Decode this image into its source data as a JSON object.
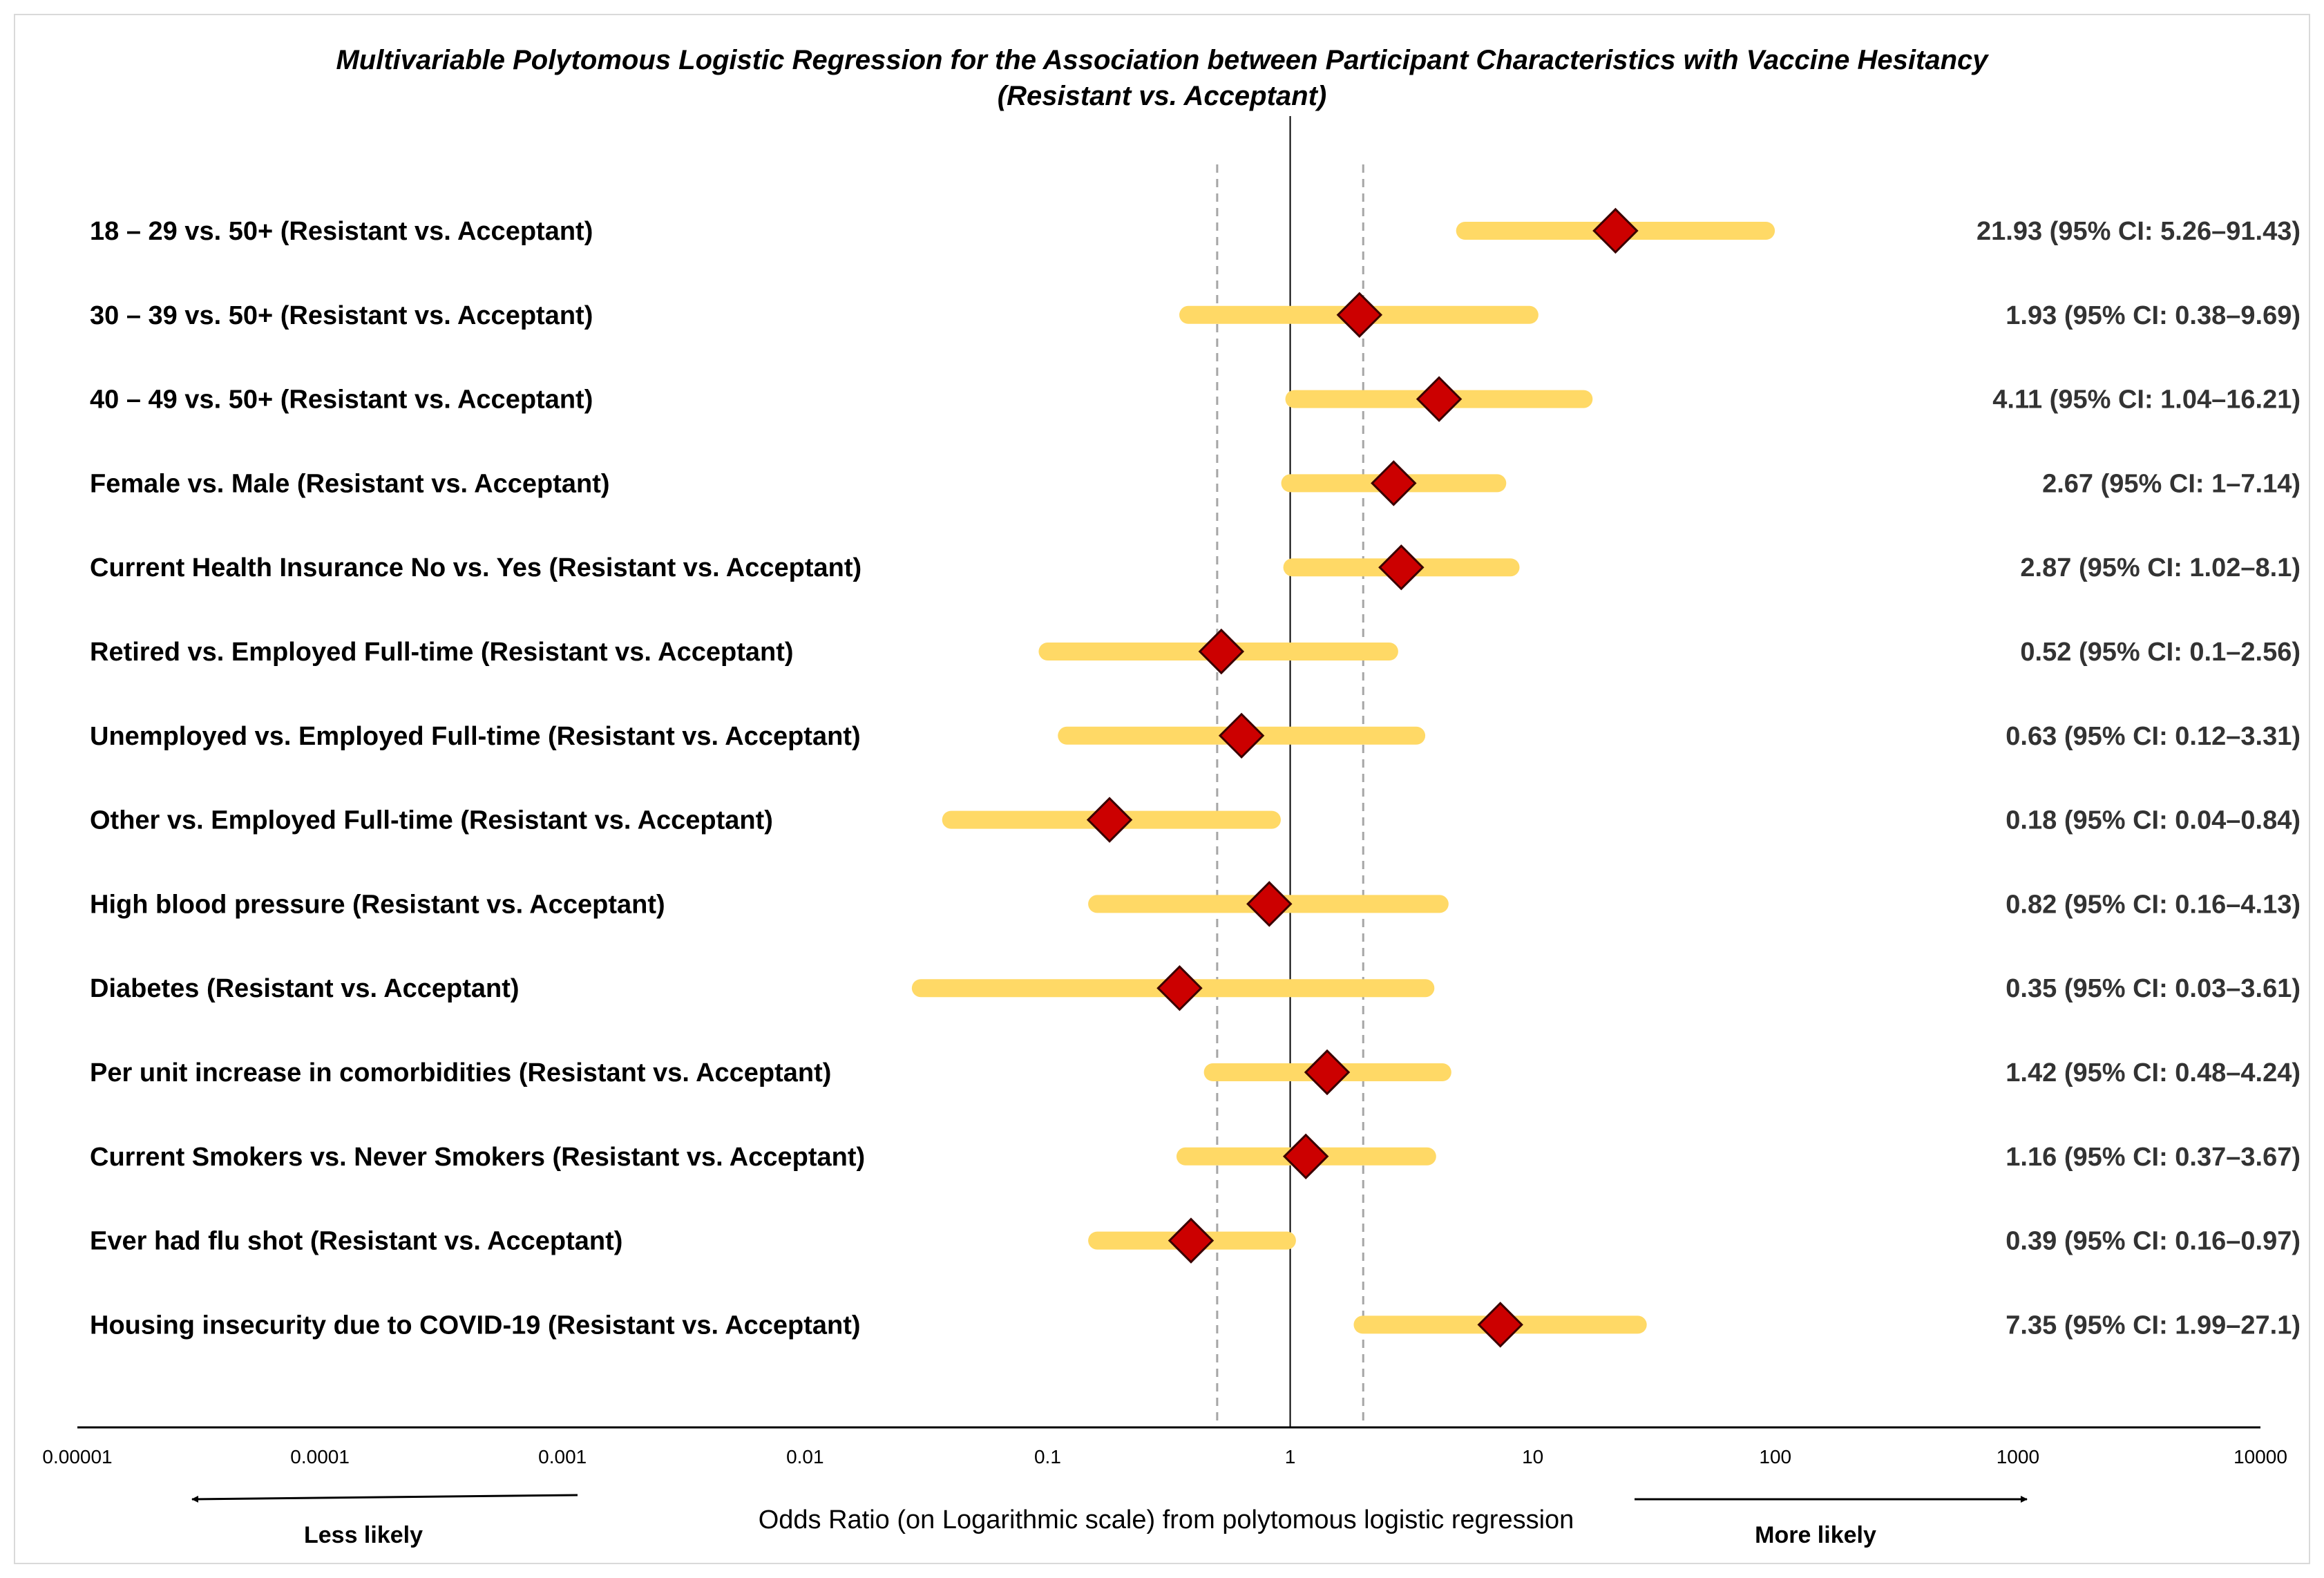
{
  "chart_data": {
    "type": "forest",
    "title_line1": "Multivariable Polytomous Logistic Regression for the Association between Participant Characteristics with Vaccine Hesitancy",
    "title_line2": "(Resistant vs. Acceptant)",
    "xlabel": "Odds Ratio (on Logarithmic scale) from polytomous logistic regression",
    "x_scale": "log10",
    "xlim": [
      1e-05,
      10000
    ],
    "x_ticks": [
      1e-05,
      0.0001,
      0.001,
      0.01,
      0.1,
      1,
      10,
      100,
      1000,
      10000
    ],
    "x_tick_labels": [
      "0.00001",
      "0.0001",
      "0.001",
      "0.01",
      "0.1",
      "1",
      "10",
      "100",
      "1000",
      "10000"
    ],
    "reference_line": 1,
    "dashed_lines": [
      0.5,
      2
    ],
    "less_likely_label": "Less likely",
    "more_likely_label": "More likely",
    "colors": {
      "ci_bar": "#ffd966",
      "marker_fill": "#cc0000",
      "marker_stroke": "#3a0000",
      "axis": "#000000",
      "dashed": "#a6a6a6"
    },
    "rows": [
      {
        "label": "18 – 29 vs. 50+ (Resistant vs. Acceptant)",
        "or": 21.93,
        "lo": 5.26,
        "hi": 91.43,
        "ci_text": "21.93 (95% CI: 5.26–91.43)"
      },
      {
        "label": "30 – 39 vs. 50+ (Resistant vs. Acceptant)",
        "or": 1.93,
        "lo": 0.38,
        "hi": 9.69,
        "ci_text": "1.93 (95% CI: 0.38–9.69)"
      },
      {
        "label": "40 – 49 vs. 50+ (Resistant vs. Acceptant)",
        "or": 4.11,
        "lo": 1.04,
        "hi": 16.21,
        "ci_text": "4.11 (95% CI: 1.04–16.21)"
      },
      {
        "label": "Female vs. Male (Resistant vs. Acceptant)",
        "or": 2.67,
        "lo": 1,
        "hi": 7.14,
        "ci_text": "2.67 (95% CI: 1–7.14)"
      },
      {
        "label": "Current Health Insurance No vs. Yes (Resistant vs. Acceptant)",
        "or": 2.87,
        "lo": 1.02,
        "hi": 8.1,
        "ci_text": "2.87 (95% CI: 1.02–8.1)"
      },
      {
        "label": "Retired vs. Employed Full-time (Resistant vs. Acceptant)",
        "or": 0.52,
        "lo": 0.1,
        "hi": 2.56,
        "ci_text": "0.52 (95% CI: 0.1–2.56)"
      },
      {
        "label": "Unemployed vs. Employed Full-time (Resistant vs. Acceptant)",
        "or": 0.63,
        "lo": 0.12,
        "hi": 3.31,
        "ci_text": "0.63 (95% CI: 0.12–3.31)"
      },
      {
        "label": "Other vs. Employed Full-time (Resistant vs. Acceptant)",
        "or": 0.18,
        "lo": 0.04,
        "hi": 0.84,
        "ci_text": "0.18 (95% CI: 0.04–0.84)"
      },
      {
        "label": "High blood pressure (Resistant vs. Acceptant)",
        "or": 0.82,
        "lo": 0.16,
        "hi": 4.13,
        "ci_text": "0.82 (95% CI: 0.16–4.13)"
      },
      {
        "label": "Diabetes (Resistant vs. Acceptant)",
        "or": 0.35,
        "lo": 0.03,
        "hi": 3.61,
        "ci_text": "0.35 (95% CI: 0.03–3.61)"
      },
      {
        "label": "Per unit increase in comorbidities (Resistant vs. Acceptant)",
        "or": 1.42,
        "lo": 0.48,
        "hi": 4.24,
        "ci_text": "1.42 (95% CI: 0.48–4.24)"
      },
      {
        "label": "Current Smokers vs. Never Smokers (Resistant vs. Acceptant)",
        "or": 1.16,
        "lo": 0.37,
        "hi": 3.67,
        "ci_text": "1.16 (95% CI: 0.37–3.67)"
      },
      {
        "label": "Ever had flu shot (Resistant vs. Acceptant)",
        "or": 0.39,
        "lo": 0.16,
        "hi": 0.97,
        "ci_text": "0.39 (95% CI: 0.16–0.97)"
      },
      {
        "label": "Housing insecurity due to COVID-19 (Resistant vs. Acceptant)",
        "or": 7.35,
        "lo": 1.99,
        "hi": 27.1,
        "ci_text": "7.35 (95% CI: 1.99–27.1)"
      }
    ]
  }
}
